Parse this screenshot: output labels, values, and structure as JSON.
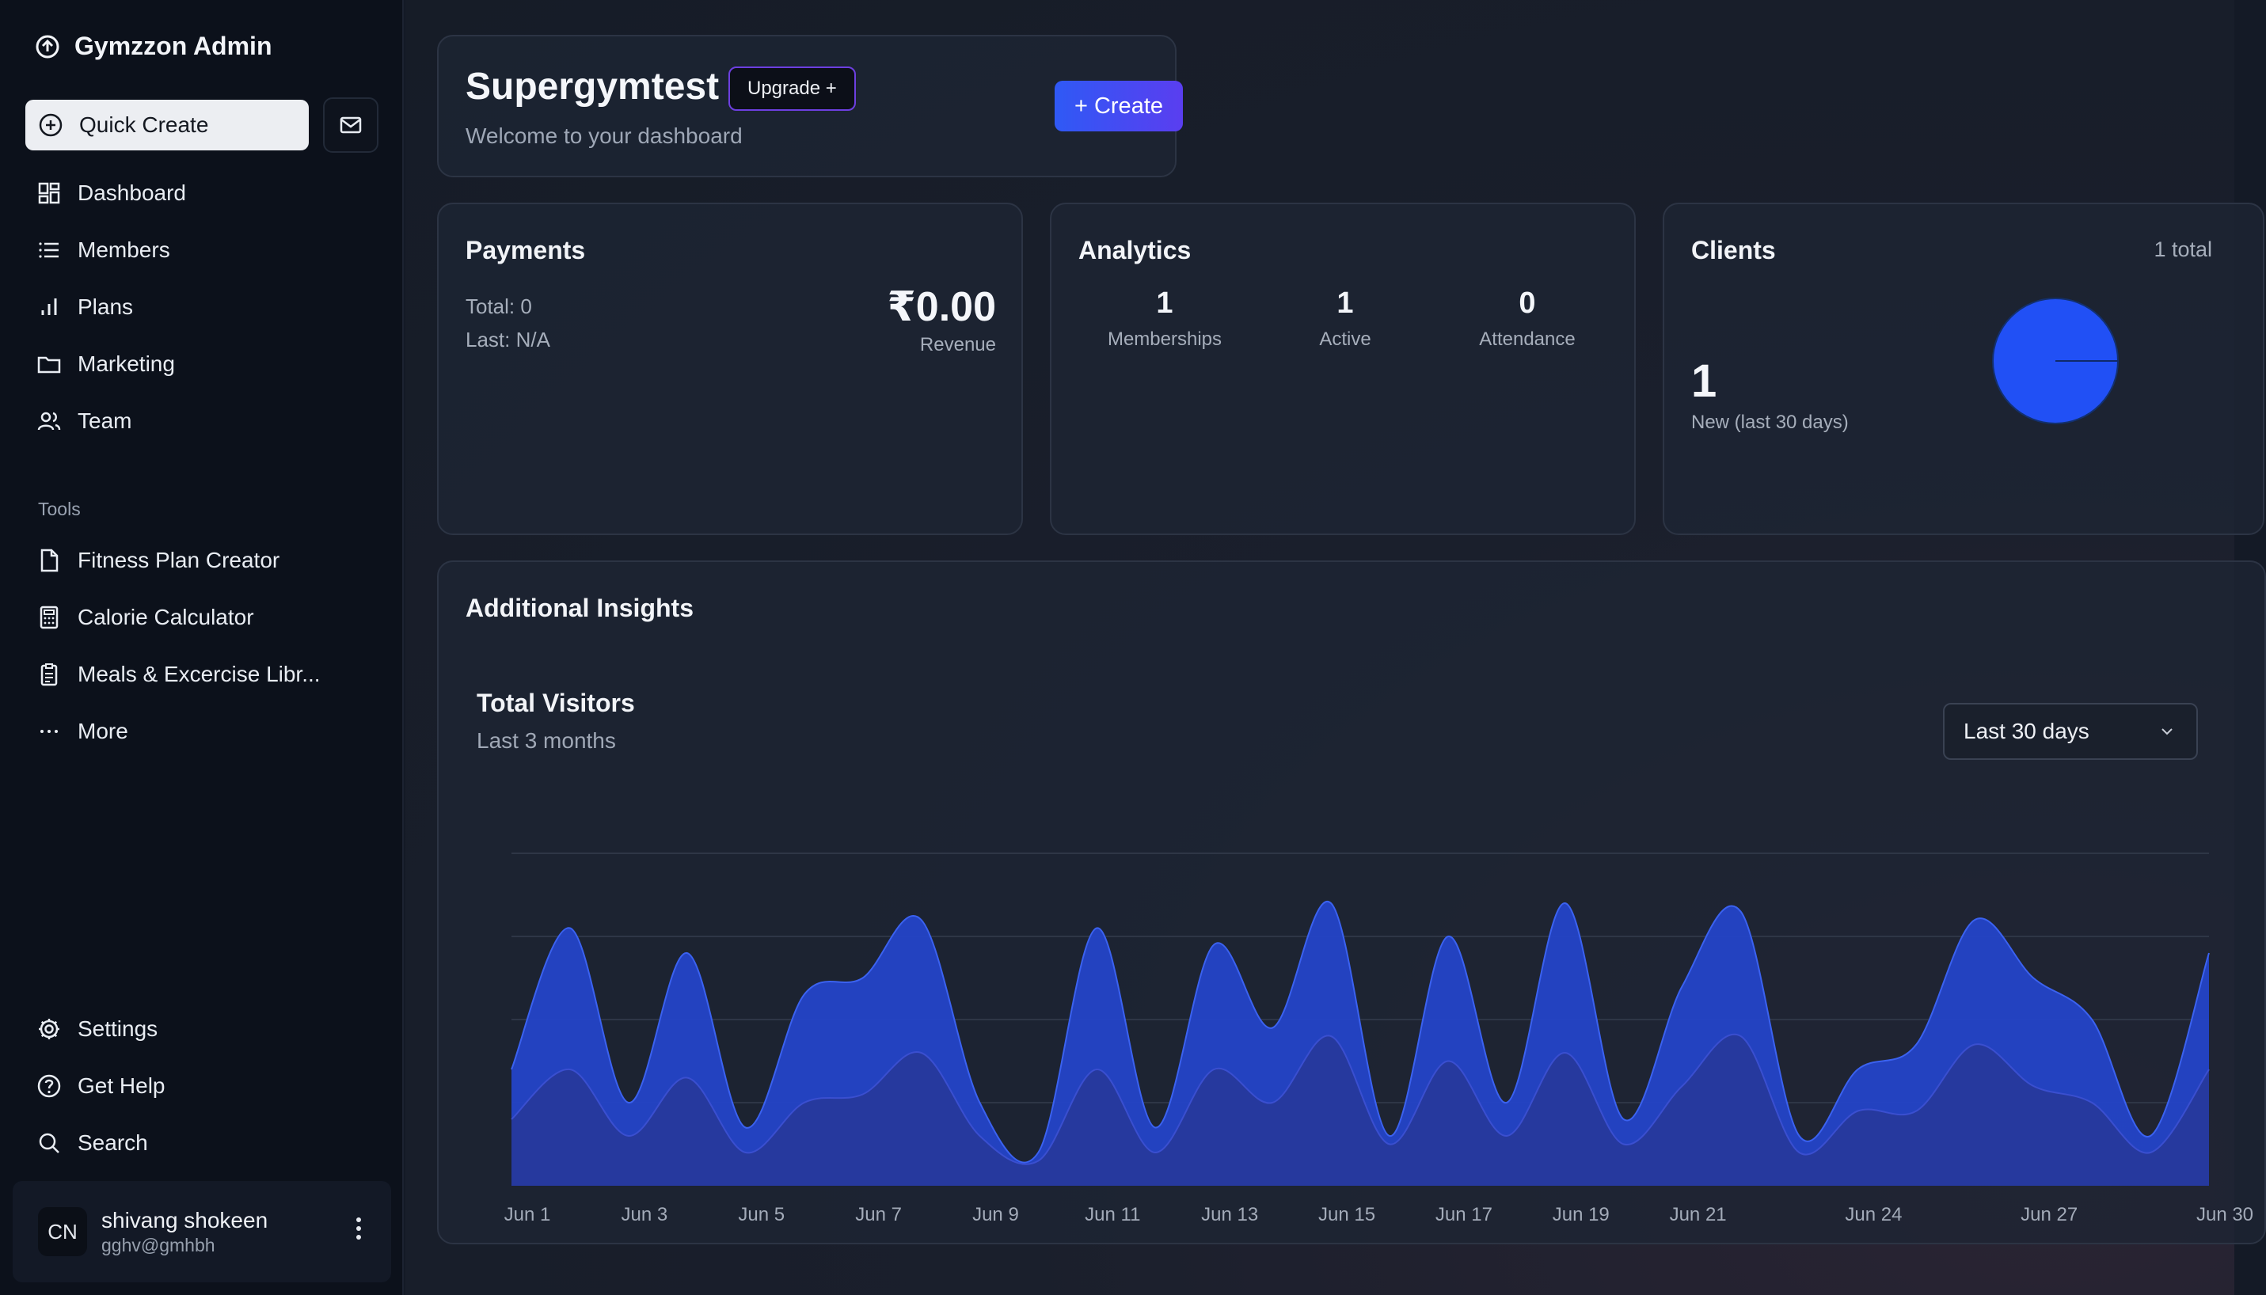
{
  "app": {
    "title": "Gymzzon Admin"
  },
  "sidebar": {
    "quick_create": "Quick Create",
    "nav": [
      {
        "label": "Dashboard",
        "icon": "dashboard-icon"
      },
      {
        "label": "Members",
        "icon": "list-icon"
      },
      {
        "label": "Plans",
        "icon": "bar-chart-icon"
      },
      {
        "label": "Marketing",
        "icon": "folder-icon"
      },
      {
        "label": "Team",
        "icon": "users-icon"
      }
    ],
    "tools_label": "Tools",
    "tools": [
      {
        "label": "Fitness Plan Creator",
        "icon": "file-icon"
      },
      {
        "label": "Calorie Calculator",
        "icon": "calculator-icon"
      },
      {
        "label": "Meals & Excercise Libr...",
        "icon": "clipboard-icon"
      },
      {
        "label": "More",
        "icon": "more-icon"
      }
    ],
    "footer": [
      {
        "label": "Settings",
        "icon": "gear-icon"
      },
      {
        "label": "Get Help",
        "icon": "help-icon"
      },
      {
        "label": "Search",
        "icon": "search-icon"
      }
    ],
    "user": {
      "initials": "CN",
      "name": "shivang shokeen",
      "email": "gghv@gmhbh"
    }
  },
  "header": {
    "title": "Supergymtest",
    "upgrade_label": "Upgrade +",
    "subtitle": "Welcome to your dashboard",
    "create_label": "+ Create"
  },
  "payments": {
    "title": "Payments",
    "total": "Total: 0",
    "last": "Last: N/A",
    "amount": "₹0.00",
    "amount_label": "Revenue"
  },
  "analytics": {
    "title": "Analytics",
    "stats": [
      {
        "value": "1",
        "label": "Memberships"
      },
      {
        "value": "1",
        "label": "Active"
      },
      {
        "value": "0",
        "label": "Attendance"
      }
    ]
  },
  "clients": {
    "title": "Clients",
    "total": "1 total",
    "new_count": "1",
    "new_label": "New (last 30 days)",
    "pie_color": "#2150f5"
  },
  "insights": {
    "title": "Additional Insights",
    "visitors_title": "Total Visitors",
    "visitors_subtitle": "Last 3 months",
    "range_label": "Last 30 days"
  },
  "colors": {
    "accent": "#2f59f5",
    "area_outer": "#2445c8",
    "area_inner": "#27389a"
  },
  "chart_data": {
    "type": "area",
    "x": [
      "Jun 1",
      "Jun 2",
      "Jun 3",
      "Jun 4",
      "Jun 5",
      "Jun 6",
      "Jun 7",
      "Jun 8",
      "Jun 9",
      "Jun 10",
      "Jun 11",
      "Jun 12",
      "Jun 13",
      "Jun 14",
      "Jun 15",
      "Jun 16",
      "Jun 17",
      "Jun 18",
      "Jun 19",
      "Jun 20",
      "Jun 21",
      "Jun 22",
      "Jun 23",
      "Jun 24",
      "Jun 25",
      "Jun 26",
      "Jun 27",
      "Jun 28",
      "Jun 29",
      "Jun 30"
    ],
    "tick_labels": [
      "Jun 1",
      "Jun 3",
      "Jun 5",
      "Jun 7",
      "Jun 9",
      "Jun 11",
      "Jun 13",
      "Jun 15",
      "Jun 17",
      "Jun 19",
      "Jun 21",
      "Jun 24",
      "Jun 27",
      "Jun 30"
    ],
    "series": [
      {
        "values": [
          140,
          310,
          100,
          280,
          70,
          230,
          250,
          320,
          100,
          40,
          310,
          70,
          290,
          190,
          340,
          60,
          300,
          100,
          340,
          80,
          240,
          330,
          60,
          140,
          170,
          320,
          250,
          200,
          60,
          280
        ]
      },
      {
        "values": [
          80,
          140,
          60,
          130,
          40,
          100,
          110,
          160,
          60,
          30,
          140,
          40,
          140,
          100,
          180,
          50,
          150,
          60,
          160,
          50,
          120,
          180,
          40,
          90,
          90,
          170,
          120,
          100,
          40,
          140
        ]
      }
    ],
    "ylim": [
      0,
      400
    ],
    "grid": true
  }
}
